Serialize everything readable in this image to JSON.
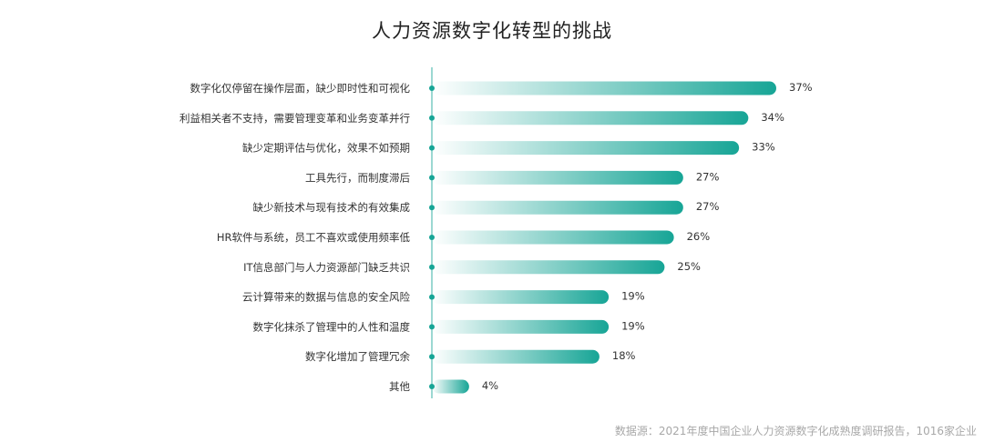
{
  "title": "人力资源数字化转型的挑战",
  "source": "数据源：2021年度中国企业人力资源数字化成熟度调研报告，1016家企业",
  "chart_data": {
    "type": "bar",
    "orientation": "horizontal",
    "title": "人力资源数字化转型的挑战",
    "categories": [
      "数字化仅停留在操作层面，缺少即时性和可视化",
      "利益相关者不支持，需要管理变革和业务变革并行",
      "缺少定期评估与优化，效果不如预期",
      "工具先行，而制度滞后",
      "缺少新技术与现有技术的有效集成",
      "HR软件与系统，员工不喜欢或使用频率低",
      "IT信息部门与人力资源部门缺乏共识",
      "云计算带来的数据与信息的安全风险",
      "数字化抹杀了管理中的人性和温度",
      "数字化增加了管理冗余",
      "其他"
    ],
    "values": [
      37,
      34,
      33,
      27,
      27,
      26,
      25,
      19,
      19,
      18,
      4
    ],
    "value_labels": [
      "37%",
      "34%",
      "33%",
      "27%",
      "27%",
      "26%",
      "25%",
      "19%",
      "19%",
      "18%",
      "4%"
    ],
    "unit": "%",
    "xlim": [
      0,
      37
    ],
    "colors": {
      "bar_start": "#ffffff",
      "bar_end": "#17a596",
      "axis": "#59bfb3",
      "dot": "#17a596"
    },
    "grid": false,
    "legend": "none"
  }
}
